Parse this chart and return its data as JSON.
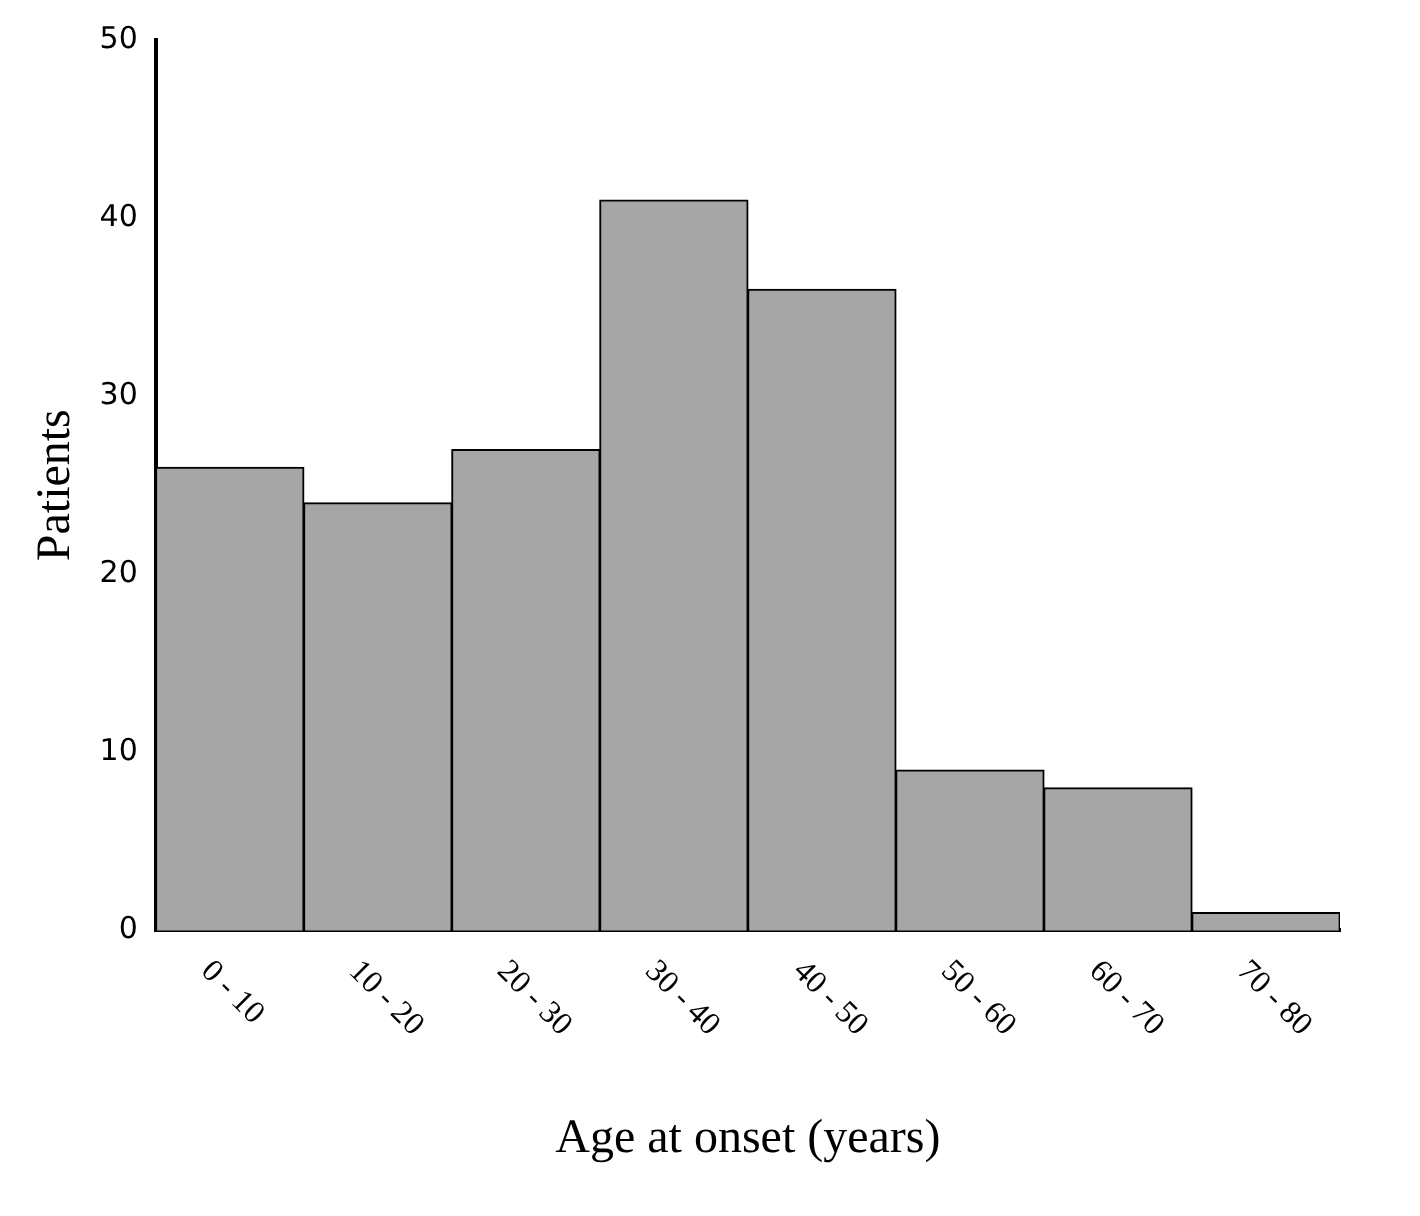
{
  "chart_data": {
    "type": "bar",
    "categories": [
      "0 - 10",
      "10 - 20",
      "20 - 30",
      "30 - 40",
      "40 - 50",
      "50 - 60",
      "60 - 70",
      "70 - 80"
    ],
    "values": [
      26,
      24,
      27,
      41,
      36,
      9,
      8,
      1
    ],
    "color": "#a6a6a6",
    "xlabel": "Age at onset (years)",
    "ylabel": "Patients",
    "ylim": [
      0,
      50
    ],
    "yticks": [
      0,
      10,
      20,
      30,
      40,
      50
    ],
    "grid": false,
    "legend": false
  }
}
